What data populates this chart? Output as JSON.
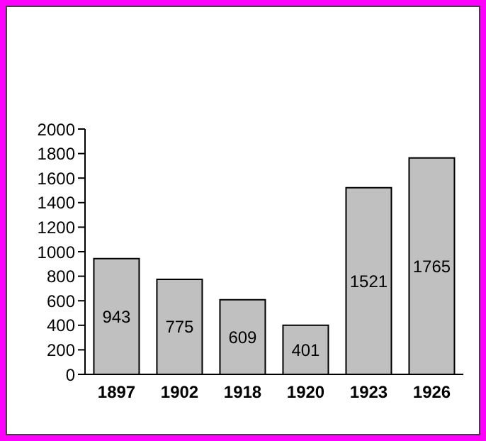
{
  "chart_data": {
    "type": "bar",
    "categories": [
      "1897",
      "1902",
      "1918",
      "1920",
      "1923",
      "1926"
    ],
    "values": [
      943,
      775,
      609,
      401,
      1521,
      1765
    ],
    "color": "#c0c0c0",
    "ylim": [
      0,
      2000
    ],
    "yticks": [
      0,
      200,
      400,
      600,
      800,
      1000,
      1200,
      1400,
      1600,
      1800,
      2000
    ],
    "grid": false,
    "data_labels": true
  }
}
